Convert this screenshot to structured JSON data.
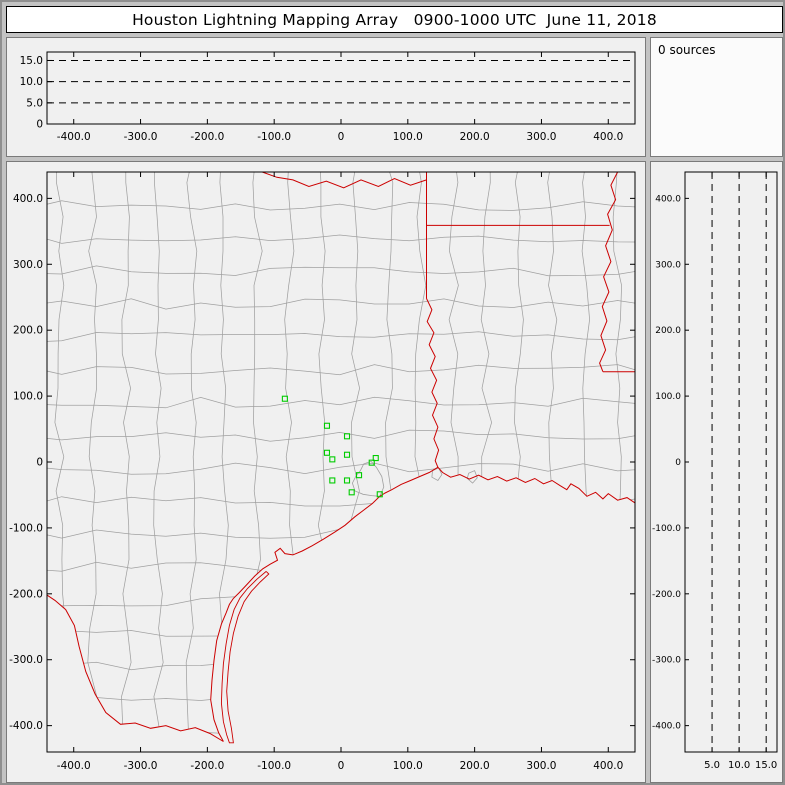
{
  "title": "Houston Lightning Mapping Array   0900-1000 UTC  June 11, 2018",
  "sources_label": "0 sources",
  "colors": {
    "county": "#a0a0a0",
    "state": "#cc0000",
    "station": "#00cc00",
    "axis": "#000000",
    "panel_bg": "#f0f0f0",
    "window_bg": "#c3c3c3"
  },
  "chart_data": [
    {
      "type": "scatter",
      "name": "altitude-vs-east-west-km",
      "xlim": [
        -440,
        440
      ],
      "ylim": [
        0,
        17
      ],
      "x_tick_labels": [
        "-400.0",
        "-300.0",
        "-200.0",
        "-100.0",
        "0",
        "100.0",
        "200.0",
        "300.0",
        "400.0"
      ],
      "y_tick_labels": [
        "0",
        "5.0",
        "10.0",
        "15.0"
      ],
      "gridlines_y": [
        5,
        10,
        15
      ],
      "grid_style": "dashed",
      "points": []
    },
    {
      "type": "scatter",
      "name": "plan-view-map-km",
      "xlim": [
        -440,
        440
      ],
      "ylim": [
        -440,
        440
      ],
      "x_tick_labels": [
        "-400.0",
        "-300.0",
        "-200.0",
        "-100.0",
        "0",
        "100.0",
        "200.0",
        "300.0",
        "400.0"
      ],
      "y_tick_labels": [
        "400.0",
        "300.0",
        "200.0",
        "100.0",
        "0",
        "-100.0",
        "-200.0",
        "-300.0",
        "-400.0"
      ],
      "points": [],
      "stations": [
        [
          -84,
          96
        ],
        [
          -21,
          55
        ],
        [
          9,
          39
        ],
        [
          -21,
          14
        ],
        [
          -13,
          4
        ],
        [
          9,
          11
        ],
        [
          46,
          -1
        ],
        [
          52,
          6
        ],
        [
          -13,
          -28
        ],
        [
          9,
          -28
        ],
        [
          27,
          -20
        ],
        [
          16,
          -46
        ],
        [
          58,
          -49
        ]
      ]
    },
    {
      "type": "scatter",
      "name": "altitude-vs-north-south-km",
      "xlim": [
        0,
        17
      ],
      "ylim": [
        -440,
        440
      ],
      "x_tick_labels": [
        "5.0",
        "10.0",
        "15.0"
      ],
      "y_tick_labels": [
        "400.0",
        "300.0",
        "200.0",
        "100.0",
        "0",
        "-100.0",
        "-200.0",
        "-300.0",
        "-400.0"
      ],
      "gridlines_x": [
        5,
        10,
        15
      ],
      "grid_style": "dashed",
      "points": []
    }
  ],
  "map": {
    "coast": [
      [
        440,
        -62
      ],
      [
        428,
        -54
      ],
      [
        414,
        -58
      ],
      [
        400,
        -48
      ],
      [
        392,
        -56
      ],
      [
        381,
        -46
      ],
      [
        368,
        -52
      ],
      [
        356,
        -40
      ],
      [
        344,
        -33
      ],
      [
        338,
        -42
      ],
      [
        328,
        -36
      ],
      [
        316,
        -28
      ],
      [
        303,
        -33
      ],
      [
        290,
        -25
      ],
      [
        276,
        -31
      ],
      [
        262,
        -24
      ],
      [
        248,
        -29
      ],
      [
        234,
        -22
      ],
      [
        220,
        -27
      ],
      [
        206,
        -20
      ],
      [
        192,
        -26
      ],
      [
        178,
        -19
      ],
      [
        164,
        -23
      ],
      [
        152,
        -16
      ],
      [
        145,
        -8
      ],
      [
        132,
        -16
      ],
      [
        118,
        -22
      ],
      [
        104,
        -28
      ],
      [
        90,
        -34
      ],
      [
        76,
        -42
      ],
      [
        66,
        -47
      ],
      [
        58,
        -52
      ],
      [
        47,
        -63
      ],
      [
        34,
        -73
      ],
      [
        21,
        -83
      ],
      [
        6,
        -96
      ],
      [
        -9,
        -106
      ],
      [
        -26,
        -117
      ],
      [
        -43,
        -127
      ],
      [
        -58,
        -135
      ],
      [
        -72,
        -141
      ],
      [
        -84,
        -139
      ],
      [
        -91,
        -131
      ],
      [
        -99,
        -137
      ],
      [
        -95,
        -149
      ],
      [
        -106,
        -155
      ],
      [
        -117,
        -162
      ],
      [
        -129,
        -173
      ],
      [
        -141,
        -186
      ],
      [
        -152,
        -198
      ],
      [
        -161,
        -207
      ],
      [
        -167,
        -216
      ],
      [
        -172,
        -229
      ],
      [
        -179,
        -246
      ],
      [
        -186,
        -271
      ],
      [
        -190,
        -301
      ],
      [
        -193,
        -331
      ],
      [
        -195,
        -361
      ],
      [
        -190,
        -391
      ],
      [
        -183,
        -411
      ],
      [
        -176,
        -424
      ]
    ],
    "rio_grande": [
      [
        -176,
        -424
      ],
      [
        -196,
        -412
      ],
      [
        -218,
        -403
      ],
      [
        -240,
        -408
      ],
      [
        -262,
        -400
      ],
      [
        -285,
        -404
      ],
      [
        -308,
        -396
      ],
      [
        -330,
        -398
      ],
      [
        -352,
        -380
      ],
      [
        -368,
        -352
      ],
      [
        -382,
        -318
      ],
      [
        -392,
        -280
      ],
      [
        -399,
        -248
      ],
      [
        -412,
        -224
      ],
      [
        -428,
        -210
      ],
      [
        -440,
        -202
      ]
    ],
    "barrier_islands": [
      [
        -112,
        -166
      ],
      [
        -126,
        -178
      ],
      [
        -140,
        -192
      ],
      [
        -151,
        -206
      ],
      [
        -160,
        -224
      ],
      [
        -167,
        -248
      ],
      [
        -172,
        -276
      ],
      [
        -176,
        -306
      ],
      [
        -178,
        -336
      ],
      [
        -179,
        -366
      ],
      [
        -176,
        -394
      ],
      [
        -171,
        -414
      ],
      [
        -167,
        -426
      ],
      [
        -161,
        -426
      ],
      [
        -164,
        -404
      ],
      [
        -169,
        -378
      ],
      [
        -171,
        -348
      ],
      [
        -169,
        -318
      ],
      [
        -166,
        -288
      ],
      [
        -161,
        -260
      ],
      [
        -154,
        -234
      ],
      [
        -145,
        -212
      ],
      [
        -134,
        -196
      ],
      [
        -121,
        -182
      ],
      [
        -108,
        -170
      ],
      [
        -112,
        -166
      ]
    ],
    "state_lines": {
      "texas_louisiana_meridian": [
        [
          128,
          248
        ],
        [
          128,
          440
        ]
      ],
      "arkansas_louisiana_33n": [
        [
          128,
          359
        ],
        [
          402,
          359
        ]
      ],
      "mississippi_river": [
        [
          414,
          440
        ],
        [
          404,
          420
        ],
        [
          411,
          398
        ],
        [
          399,
          376
        ],
        [
          406,
          352
        ],
        [
          396,
          328
        ],
        [
          404,
          304
        ],
        [
          393,
          281
        ],
        [
          401,
          258
        ],
        [
          391,
          236
        ],
        [
          398,
          214
        ],
        [
          389,
          192
        ],
        [
          396,
          170
        ],
        [
          387,
          150
        ],
        [
          392,
          137
        ]
      ],
      "louisiana_mississippi_31n": [
        [
          392,
          137
        ],
        [
          440,
          137
        ]
      ],
      "sabine_river": [
        [
          128,
          248
        ],
        [
          136,
          231
        ],
        [
          129,
          213
        ],
        [
          139,
          196
        ],
        [
          132,
          178
        ],
        [
          141,
          160
        ],
        [
          134,
          142
        ],
        [
          143,
          124
        ],
        [
          136,
          106
        ],
        [
          144,
          89
        ],
        [
          137,
          71
        ],
        [
          145,
          53
        ],
        [
          139,
          35
        ],
        [
          146,
          18
        ],
        [
          141,
          2
        ],
        [
          145,
          -8
        ]
      ],
      "red_river": [
        [
          128,
          428
        ],
        [
          104,
          420
        ],
        [
          80,
          430
        ],
        [
          56,
          418
        ],
        [
          30,
          428
        ],
        [
          4,
          416
        ],
        [
          -22,
          426
        ],
        [
          -48,
          418
        ],
        [
          -72,
          428
        ],
        [
          -96,
          432
        ],
        [
          -118,
          440
        ]
      ]
    },
    "water_outlines": {
      "galveston_bay": [
        [
          58,
          -52
        ],
        [
          64,
          -38
        ],
        [
          61,
          -22
        ],
        [
          53,
          -8
        ],
        [
          45,
          1
        ],
        [
          34,
          -3
        ],
        [
          29,
          -13
        ],
        [
          23,
          -20
        ],
        [
          17,
          -32
        ],
        [
          21,
          -44
        ],
        [
          33,
          -49
        ],
        [
          46,
          -51
        ],
        [
          58,
          -52
        ]
      ],
      "sabine_lake": [
        [
          137,
          -13
        ],
        [
          146,
          -9
        ],
        [
          151,
          -19
        ],
        [
          145,
          -28
        ],
        [
          136,
          -23
        ],
        [
          137,
          -13
        ]
      ],
      "calcasieu_lake": [
        [
          191,
          -17
        ],
        [
          200,
          -13
        ],
        [
          204,
          -24
        ],
        [
          197,
          -32
        ],
        [
          189,
          -25
        ],
        [
          191,
          -17
        ]
      ]
    }
  }
}
